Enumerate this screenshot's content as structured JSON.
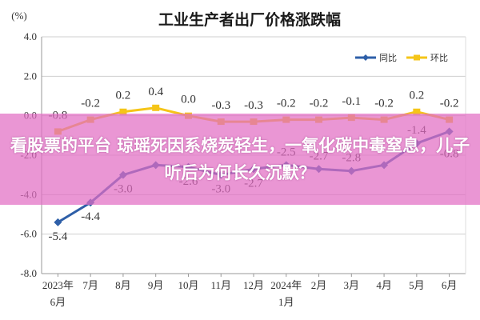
{
  "chart_data": {
    "type": "line",
    "title": "工业生产者出厂价格涨跌幅",
    "unit_label": "(%)",
    "categories": [
      "2023年 6月",
      "7月",
      "8月",
      "9月",
      "10月",
      "11月",
      "12月",
      "2024年 1月",
      "2月",
      "3月",
      "4月",
      "5月",
      "6月"
    ],
    "x_tick_lines": [
      [
        "2023年",
        "6月"
      ],
      [
        "7月"
      ],
      [
        "8月"
      ],
      [
        "9月"
      ],
      [
        "10月"
      ],
      [
        "11月"
      ],
      [
        "12月"
      ],
      [
        "2024年",
        "1月"
      ],
      [
        "2月"
      ],
      [
        "3月"
      ],
      [
        "4月"
      ],
      [
        "5月"
      ],
      [
        "6月"
      ]
    ],
    "series": [
      {
        "name": "同比",
        "color": "#2E5FA8",
        "values": [
          -5.4,
          -4.4,
          -3.0,
          -2.5,
          -2.6,
          -3.0,
          -2.7,
          -2.5,
          -2.7,
          -2.8,
          -2.5,
          -1.4,
          -0.8
        ],
        "labels": [
          "-5.4",
          "-4.4",
          "-3.0",
          "",
          "-2.6",
          "-3.0",
          "-2.7",
          "-2.5",
          "-2.7",
          "-2.8",
          "",
          "-1.4",
          "-0.8"
        ]
      },
      {
        "name": "环比",
        "color": "#F5C518",
        "values": [
          -0.8,
          -0.2,
          0.2,
          0.4,
          0.0,
          -0.3,
          -0.3,
          -0.2,
          -0.2,
          -0.1,
          -0.2,
          0.2,
          -0.2
        ],
        "labels": [
          "-0.8",
          "-0.2",
          "0.2",
          "0.4",
          "0.0",
          "-0.3",
          "-0.3",
          "-0.2",
          "-0.2",
          "-0.1",
          "-0.2",
          "0.2",
          "-0.2"
        ]
      }
    ],
    "ylim": [
      -8.0,
      4.0
    ],
    "yticks": [
      "4.0",
      "2.0",
      "0.0",
      "-2.0",
      "-4.0",
      "-6.0",
      "-8.0"
    ],
    "ytick_values": [
      4,
      2,
      0,
      -2,
      -4,
      -6,
      -8
    ],
    "grid": true,
    "legend_position": "top-right"
  },
  "overlay": {
    "headline": "看股票的平台 琼瑶死因系烧炭轻生，一氧化碳中毒窒息，儿子听后为何长久沉默？"
  }
}
